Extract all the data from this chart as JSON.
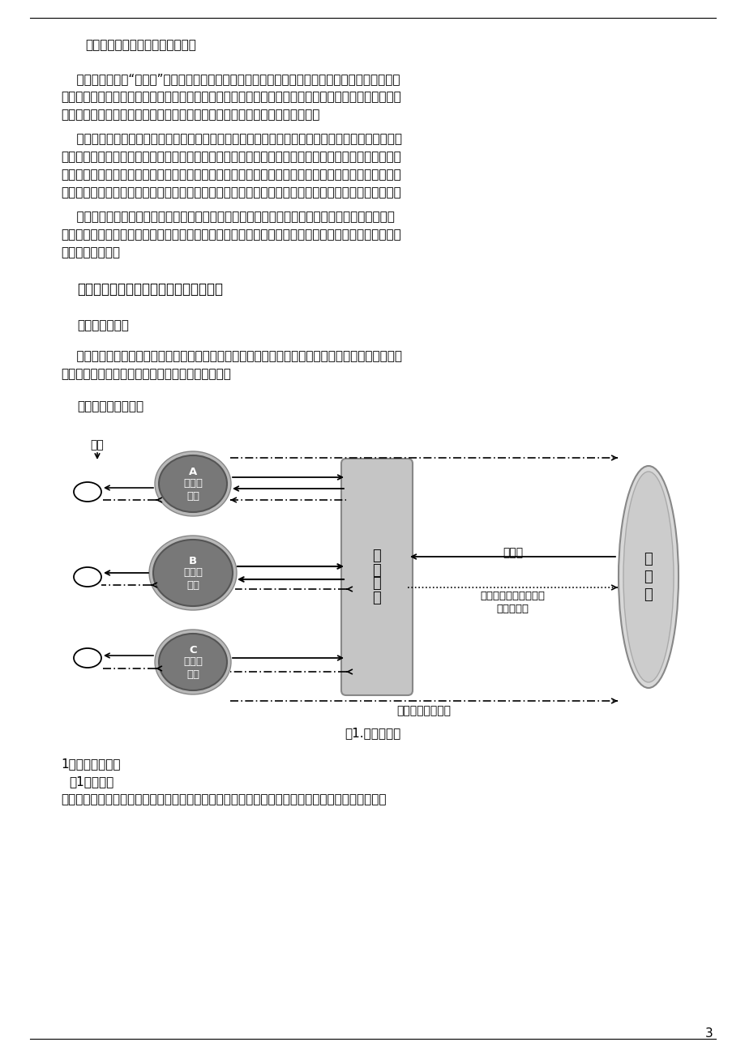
{
  "bg_color": "#ffffff",
  "text_color": "#000000",
  "para_si": "（四）多样化、个性化的餐饮需求",
  "heading2_text": "二、大学校园快餐外卖店经营模式的构想",
  "sub1": "（一）创新理念",
  "sub2": "（二）经营模式简介",
  "fig_caption": "图1.运作流程图",
  "bottom_text1": "1、基本流程介绍",
  "bottom_text2": "（1）信息流",
  "bottom_text3": "各高校设有餐饮外卖店，负责将顾客的订餐信息进行汇总，并将信息同时传送到中央厨房和供应商。",
  "page_num": "3"
}
